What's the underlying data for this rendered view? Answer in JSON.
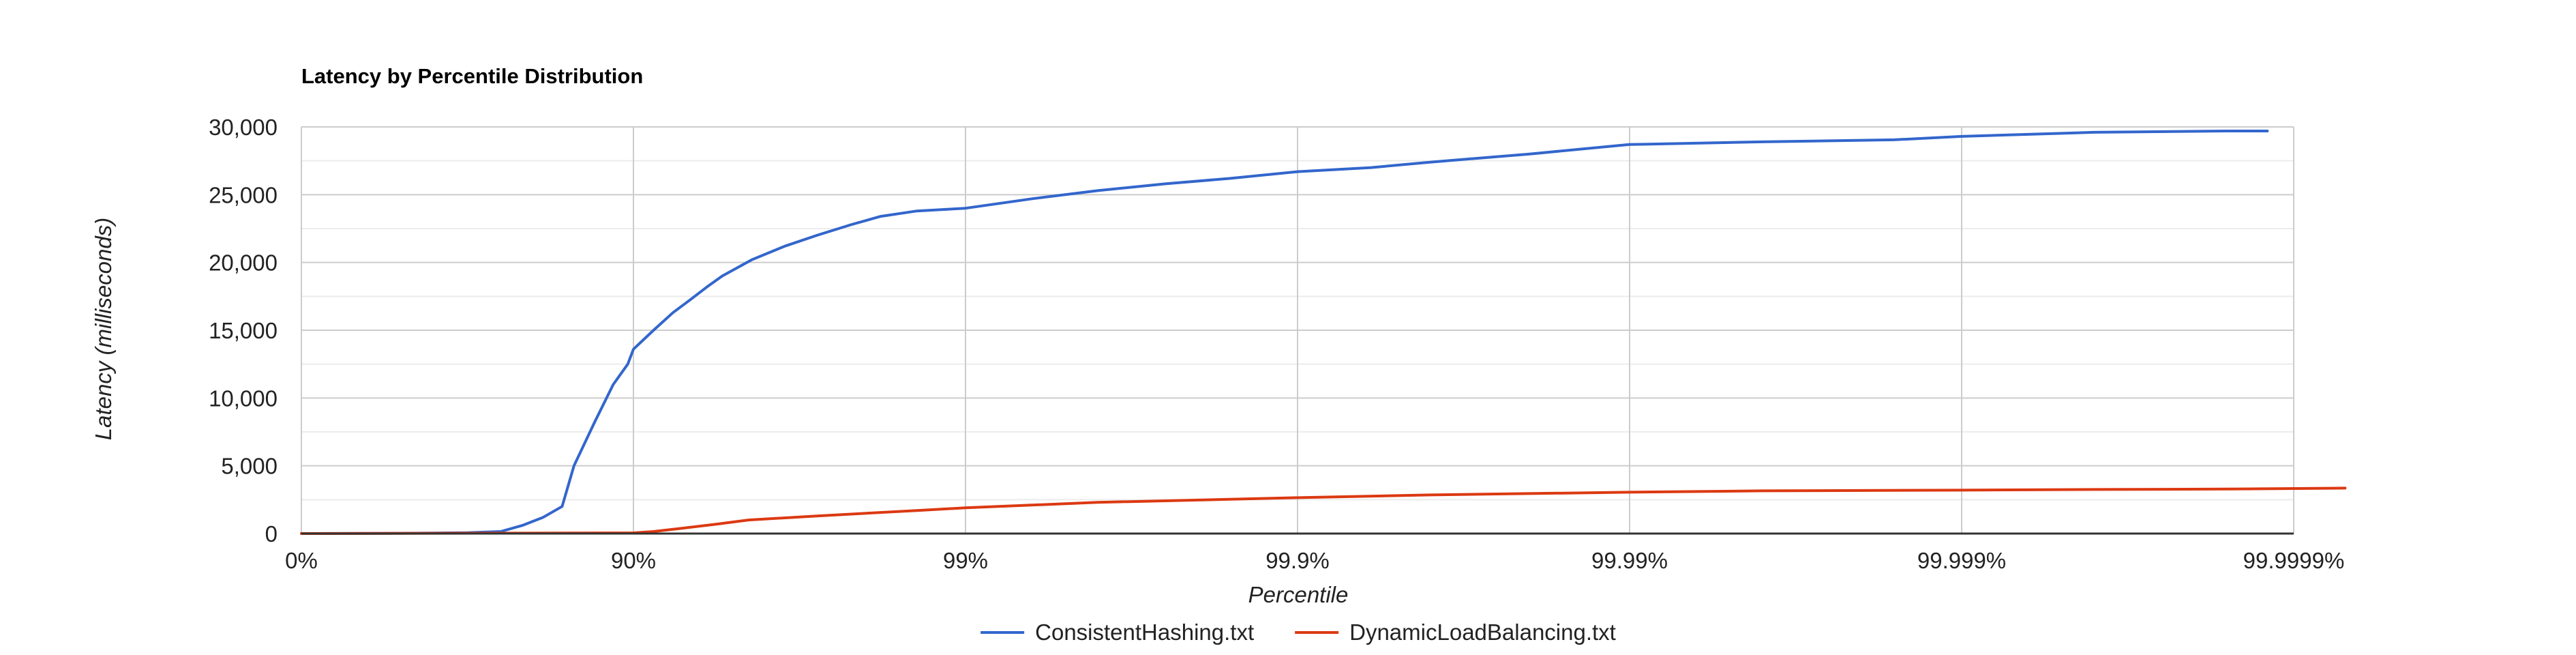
{
  "chart_data": {
    "type": "line",
    "title": "Latency by Percentile Distribution",
    "xlabel": "Percentile",
    "ylabel": "Latency (milliseconds)",
    "ylim": [
      0,
      30000
    ],
    "y_ticks": [
      0,
      5000,
      10000,
      15000,
      20000,
      25000,
      30000
    ],
    "y_tick_labels": [
      "0",
      "5,000",
      "10,000",
      "15,000",
      "20,000",
      "25,000",
      "30,000"
    ],
    "x_scale": "inverse-log percentile (each major tick adds one nine)",
    "x_ticks": [
      0,
      90,
      99,
      99.9,
      99.99,
      99.999,
      99.9999
    ],
    "x_tick_labels": [
      "0%",
      "90%",
      "99%",
      "99.9%",
      "99.99%",
      "99.999%",
      "99.9999%"
    ],
    "grid": true,
    "legend_position": "bottom",
    "series": [
      {
        "name": "ConsistentHashing.txt",
        "color": "#3366cc",
        "points": [
          [
            0,
            0
          ],
          [
            50,
            20
          ],
          [
            68.4,
            60
          ],
          [
            74.9,
            150
          ],
          [
            78.4,
            600
          ],
          [
            81.3,
            1200
          ],
          [
            83.6,
            2000
          ],
          [
            84.9,
            5000
          ],
          [
            86.9,
            8200
          ],
          [
            88.5,
            11000
          ],
          [
            89.6,
            12500
          ],
          [
            90.0,
            13600
          ],
          [
            91.3,
            15000
          ],
          [
            92.4,
            16300
          ],
          [
            93.3,
            17300
          ],
          [
            94.0,
            18200
          ],
          [
            94.6,
            19000
          ],
          [
            95.6,
            20200
          ],
          [
            96.5,
            21200
          ],
          [
            97.2,
            22000
          ],
          [
            97.8,
            22800
          ],
          [
            98.2,
            23400
          ],
          [
            98.6,
            23800
          ],
          [
            99.0,
            24000
          ],
          [
            99.37,
            24700
          ],
          [
            99.6,
            25300
          ],
          [
            99.75,
            25800
          ],
          [
            99.84,
            26200
          ],
          [
            99.9,
            26700
          ],
          [
            99.94,
            27000
          ],
          [
            99.96,
            27400
          ],
          [
            99.98,
            28000
          ],
          [
            99.99,
            28700
          ],
          [
            99.996,
            28900
          ],
          [
            99.9984,
            29050
          ],
          [
            99.999,
            29300
          ],
          [
            99.9996,
            29600
          ],
          [
            99.99984,
            29700
          ],
          [
            99.99988,
            29700
          ]
        ]
      },
      {
        "name": "DynamicLoadBalancing.txt",
        "color": "#dc3912",
        "points": [
          [
            0,
            0
          ],
          [
            90.0,
            50
          ],
          [
            91.3,
            150
          ],
          [
            92.9,
            400
          ],
          [
            94.4,
            700
          ],
          [
            95.5,
            1000
          ],
          [
            97.2,
            1300
          ],
          [
            98.6,
            1700
          ],
          [
            99.0,
            1900
          ],
          [
            99.6,
            2300
          ],
          [
            99.9,
            2650
          ],
          [
            99.96,
            2850
          ],
          [
            99.99,
            3050
          ],
          [
            99.996,
            3150
          ],
          [
            99.999,
            3200
          ],
          [
            99.9996,
            3250
          ],
          [
            99.99984,
            3280
          ],
          [
            99.99993,
            3350
          ]
        ]
      }
    ]
  }
}
